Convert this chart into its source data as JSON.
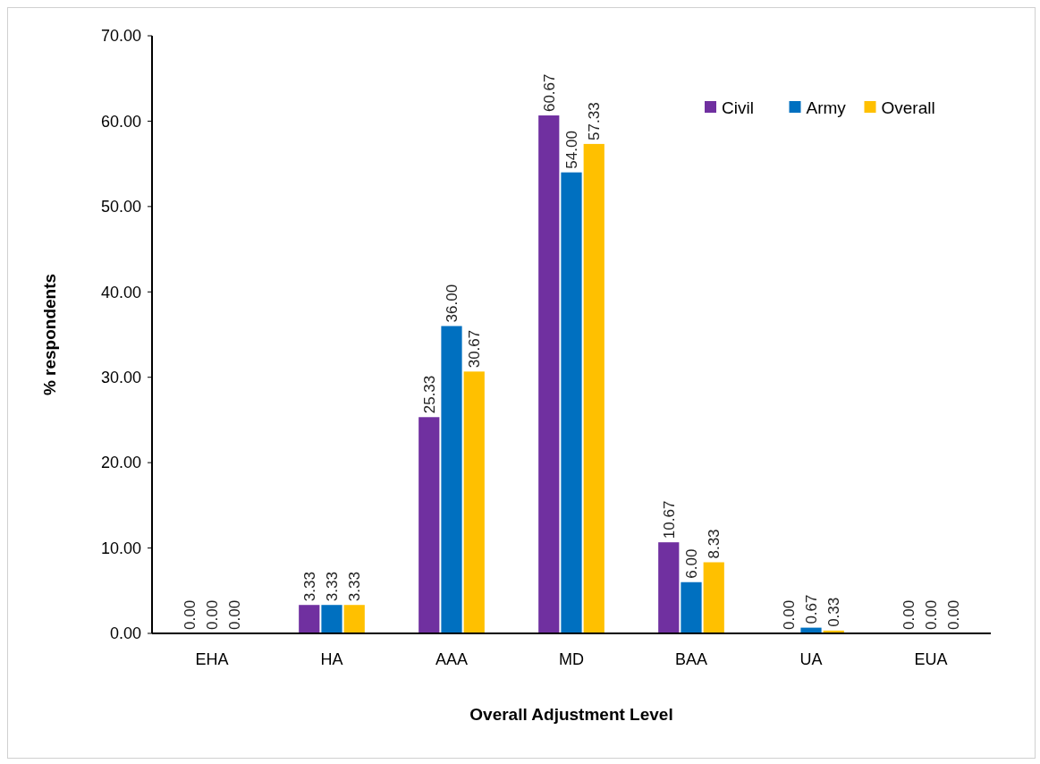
{
  "chart_data": {
    "type": "bar",
    "xlabel": "Overall Adjustment Level",
    "ylabel": "% respondents",
    "categories": [
      "EHA",
      "HA",
      "AAA",
      "MD",
      "BAA",
      "UA",
      "EUA"
    ],
    "series": [
      {
        "name": "Civil",
        "color": "#7030a0",
        "values": [
          0,
          3.33,
          25.33,
          60.67,
          10.67,
          0,
          0
        ],
        "value_labels": [
          "0.00",
          "3.33",
          "25.33",
          "60.67",
          "10.67",
          "0.00",
          "0.00"
        ]
      },
      {
        "name": "Army",
        "color": "#0070c0",
        "values": [
          0,
          3.33,
          36,
          54,
          6,
          0.67,
          0
        ],
        "value_labels": [
          "0.00",
          "3.33",
          "36.00",
          "54.00",
          "6.00",
          "0.67",
          "0.00"
        ]
      },
      {
        "name": "Overall",
        "color": "#ffc000",
        "values": [
          0,
          3.33,
          30.67,
          57.33,
          8.33,
          0.33,
          0
        ],
        "value_labels": [
          "0.00",
          "3.33",
          "30.67",
          "57.33",
          "8.33",
          "0.33",
          "0.00"
        ]
      }
    ],
    "ylim": [
      0,
      70
    ],
    "yticks": [
      {
        "value": 0,
        "label": "0.00"
      },
      {
        "value": 10,
        "label": "10.00"
      },
      {
        "value": 20,
        "label": "20.00"
      },
      {
        "value": 30,
        "label": "30.00"
      },
      {
        "value": 40,
        "label": "40.00"
      },
      {
        "value": 50,
        "label": "50.00"
      },
      {
        "value": 60,
        "label": "60.00"
      },
      {
        "value": 70,
        "label": "70.00"
      }
    ],
    "grid": false,
    "legend": "top right"
  }
}
